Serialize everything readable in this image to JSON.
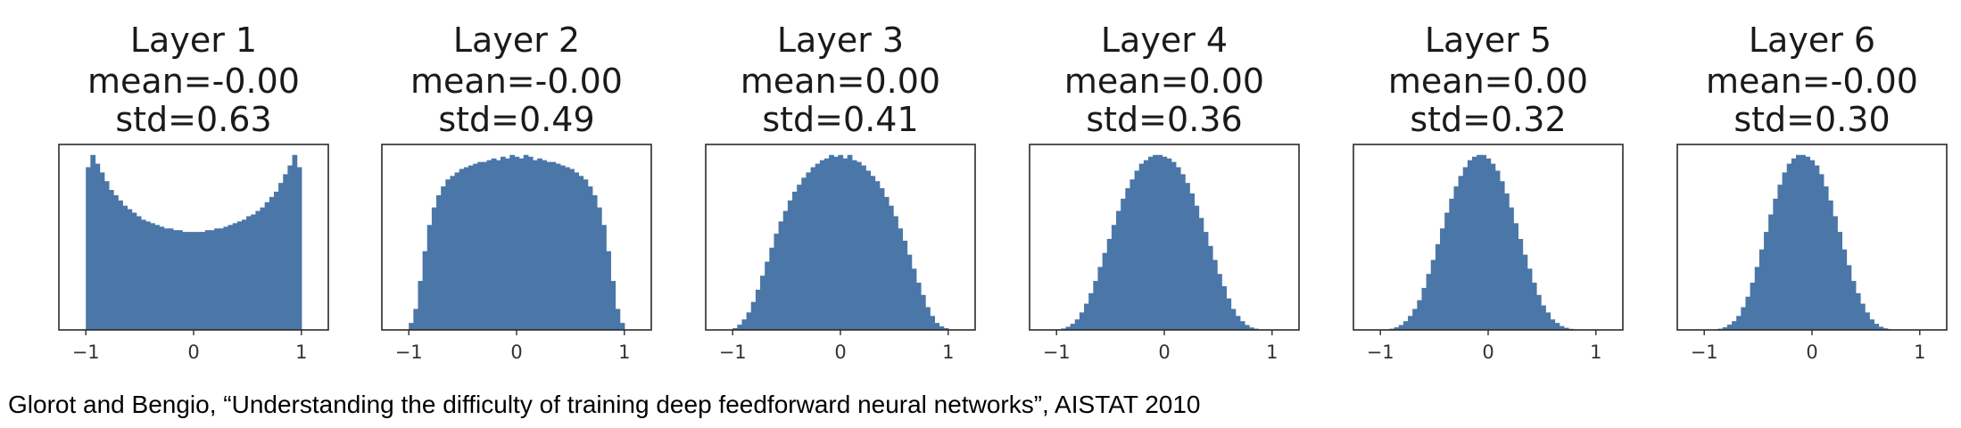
{
  "caption": "Glorot and Bengio, “Understanding the difficulty of training deep feedforward neural networks”, AISTAT 2010",
  "colors": {
    "bar": "#4a76a8",
    "axis": "#2b2b2b",
    "text": "#1a1a1a"
  },
  "chart_data": [
    {
      "type": "bar",
      "title": "Layer 1",
      "subtitle": [
        "mean=-0.00",
        "std=0.63"
      ],
      "xlim": [
        -1.25,
        1.25
      ],
      "xticks": [
        -1,
        0,
        1
      ],
      "xtick_labels": [
        "−1",
        "0",
        "1"
      ],
      "ylim": [
        0,
        1.06
      ],
      "bin_range": [
        -1,
        1
      ],
      "values": [
        0.93,
        1.0,
        0.95,
        0.9,
        0.85,
        0.8,
        0.77,
        0.74,
        0.71,
        0.69,
        0.67,
        0.65,
        0.63,
        0.62,
        0.61,
        0.6,
        0.59,
        0.58,
        0.58,
        0.57,
        0.57,
        0.56,
        0.56,
        0.56,
        0.56,
        0.56,
        0.57,
        0.57,
        0.58,
        0.58,
        0.59,
        0.6,
        0.61,
        0.62,
        0.63,
        0.65,
        0.66,
        0.68,
        0.7,
        0.73,
        0.76,
        0.79,
        0.84,
        0.89,
        0.94,
        1.0,
        0.93
      ]
    },
    {
      "type": "bar",
      "title": "Layer 2",
      "subtitle": [
        "mean=-0.00",
        "std=0.49"
      ],
      "xlim": [
        -1.25,
        1.25
      ],
      "xticks": [
        -1,
        0,
        1
      ],
      "xtick_labels": [
        "−1",
        "0",
        "1"
      ],
      "ylim": [
        0,
        1.06
      ],
      "bin_range": [
        -1,
        1
      ],
      "values": [
        0.04,
        0.12,
        0.28,
        0.45,
        0.6,
        0.7,
        0.77,
        0.82,
        0.86,
        0.88,
        0.9,
        0.92,
        0.93,
        0.94,
        0.95,
        0.96,
        0.96,
        0.97,
        0.98,
        0.97,
        0.99,
        0.98,
        1.0,
        0.99,
        0.98,
        1.0,
        0.99,
        0.97,
        0.98,
        0.97,
        0.96,
        0.96,
        0.95,
        0.94,
        0.93,
        0.92,
        0.9,
        0.88,
        0.86,
        0.82,
        0.77,
        0.7,
        0.6,
        0.45,
        0.28,
        0.12,
        0.04
      ]
    },
    {
      "type": "bar",
      "title": "Layer 3",
      "subtitle": [
        "mean=0.00",
        "std=0.41"
      ],
      "xlim": [
        -1.25,
        1.25
      ],
      "xticks": [
        -1,
        0,
        1
      ],
      "xtick_labels": [
        "−1",
        "0",
        "1"
      ],
      "ylim": [
        0,
        1.06
      ],
      "bin_range": [
        -1,
        1
      ],
      "values": [
        0.01,
        0.03,
        0.06,
        0.1,
        0.16,
        0.23,
        0.31,
        0.39,
        0.47,
        0.55,
        0.62,
        0.68,
        0.74,
        0.79,
        0.83,
        0.87,
        0.9,
        0.93,
        0.95,
        0.97,
        0.98,
        1.0,
        0.99,
        1.0,
        0.98,
        1.0,
        0.97,
        0.96,
        0.94,
        0.91,
        0.88,
        0.85,
        0.81,
        0.76,
        0.71,
        0.65,
        0.58,
        0.51,
        0.43,
        0.35,
        0.27,
        0.2,
        0.13,
        0.08,
        0.04,
        0.02,
        0.01
      ]
    },
    {
      "type": "bar",
      "title": "Layer 4",
      "subtitle": [
        "mean=0.00",
        "std=0.36"
      ],
      "xlim": [
        -1.25,
        1.25
      ],
      "xticks": [
        -1,
        0,
        1
      ],
      "xtick_labels": [
        "−1",
        "0",
        "1"
      ],
      "ylim": [
        0,
        1.06
      ],
      "bin_range": [
        -1,
        1
      ],
      "values": [
        0.003,
        0.008,
        0.018,
        0.035,
        0.06,
        0.1,
        0.15,
        0.21,
        0.28,
        0.36,
        0.44,
        0.52,
        0.6,
        0.68,
        0.75,
        0.81,
        0.86,
        0.91,
        0.95,
        0.97,
        0.99,
        1.0,
        1.0,
        0.99,
        0.98,
        0.96,
        0.93,
        0.89,
        0.84,
        0.78,
        0.71,
        0.64,
        0.56,
        0.48,
        0.4,
        0.32,
        0.25,
        0.18,
        0.12,
        0.08,
        0.05,
        0.028,
        0.014,
        0.007,
        0.003,
        0.001,
        0.0
      ]
    },
    {
      "type": "bar",
      "title": "Layer 5",
      "subtitle": [
        "mean=0.00",
        "std=0.32"
      ],
      "xlim": [
        -1.25,
        1.25
      ],
      "xticks": [
        -1,
        0,
        1
      ],
      "xtick_labels": [
        "−1",
        "0",
        "1"
      ],
      "ylim": [
        0,
        1.06
      ],
      "bin_range": [
        -1,
        1
      ],
      "values": [
        0.001,
        0.003,
        0.007,
        0.015,
        0.028,
        0.05,
        0.08,
        0.12,
        0.17,
        0.24,
        0.32,
        0.4,
        0.49,
        0.58,
        0.67,
        0.75,
        0.82,
        0.88,
        0.93,
        0.97,
        0.99,
        1.0,
        1.0,
        0.98,
        0.95,
        0.91,
        0.85,
        0.78,
        0.7,
        0.61,
        0.52,
        0.43,
        0.35,
        0.27,
        0.2,
        0.14,
        0.1,
        0.06,
        0.04,
        0.022,
        0.012,
        0.006,
        0.003,
        0.001,
        0.0,
        0.0,
        0.0
      ]
    },
    {
      "type": "bar",
      "title": "Layer 6",
      "subtitle": [
        "mean=-0.00",
        "std=0.30"
      ],
      "xlim": [
        -1.25,
        1.25
      ],
      "xticks": [
        -1,
        0,
        1
      ],
      "xtick_labels": [
        "−1",
        "0",
        "1"
      ],
      "ylim": [
        0,
        1.06
      ],
      "bin_range": [
        -1,
        1
      ],
      "values": [
        0.0,
        0.001,
        0.003,
        0.007,
        0.015,
        0.03,
        0.05,
        0.08,
        0.13,
        0.19,
        0.27,
        0.36,
        0.46,
        0.56,
        0.66,
        0.75,
        0.83,
        0.9,
        0.95,
        0.98,
        1.0,
        1.0,
        0.99,
        0.97,
        0.94,
        0.89,
        0.82,
        0.74,
        0.65,
        0.56,
        0.46,
        0.37,
        0.28,
        0.21,
        0.15,
        0.1,
        0.06,
        0.035,
        0.018,
        0.009,
        0.004,
        0.002,
        0.001,
        0.0,
        0.0,
        0.0,
        0.0
      ]
    }
  ]
}
